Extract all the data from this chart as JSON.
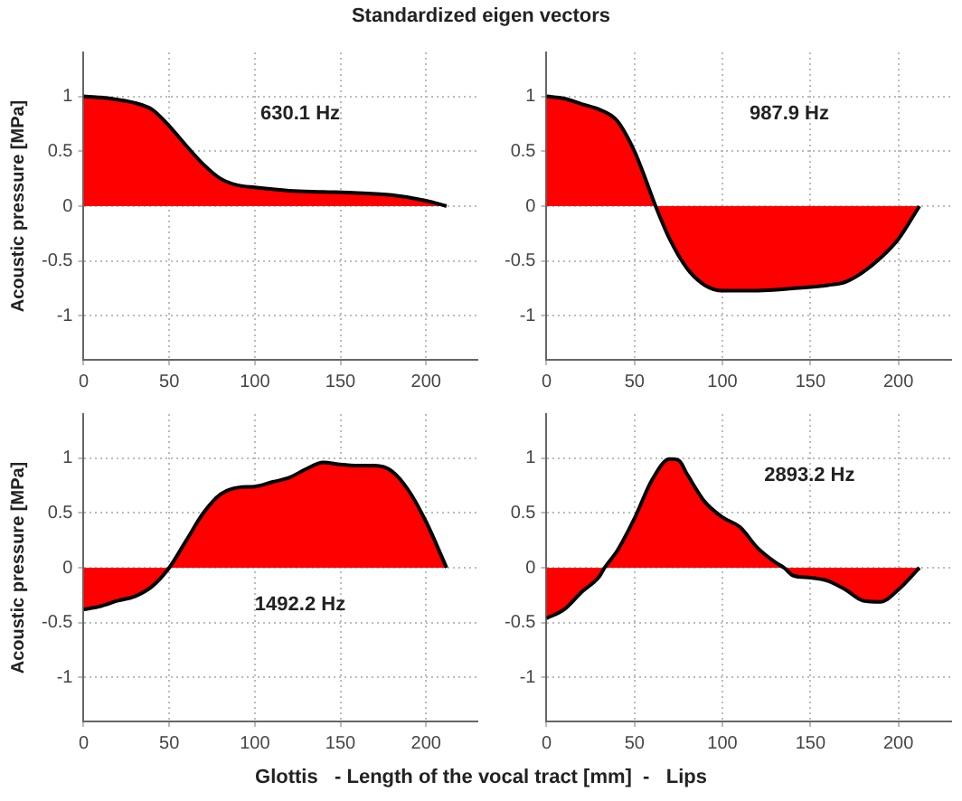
{
  "chart_data": [
    {
      "type": "area",
      "title": "Standardized eigen vectors",
      "ylabel": "Acoustic pressure [MPa]",
      "annotations": [
        "630.1 Hz"
      ],
      "xlim": [
        0,
        230
      ],
      "ylim": [
        -1.4,
        1.4
      ],
      "xticks": [
        0,
        50,
        100,
        150,
        200
      ],
      "yticks": [
        -1,
        -0.5,
        0,
        0.5,
        1
      ],
      "grid": true,
      "legend": false,
      "marker": "none",
      "series": [
        {
          "color": "#ff0000",
          "x": [
            0,
            10,
            20,
            30,
            40,
            50,
            60,
            70,
            80,
            90,
            100,
            120,
            140,
            160,
            180,
            200,
            212
          ],
          "values": [
            1.0,
            0.99,
            0.97,
            0.94,
            0.88,
            0.73,
            0.55,
            0.38,
            0.25,
            0.19,
            0.17,
            0.14,
            0.13,
            0.12,
            0.1,
            0.05,
            0.0
          ]
        }
      ]
    },
    {
      "type": "area",
      "annotations": [
        "987.9 Hz"
      ],
      "xlim": [
        0,
        230
      ],
      "ylim": [
        -1.4,
        1.4
      ],
      "xticks": [
        0,
        50,
        100,
        150,
        200
      ],
      "yticks": [
        -1,
        -0.5,
        0,
        0.5,
        1
      ],
      "grid": true,
      "legend": false,
      "marker": "none",
      "series": [
        {
          "color": "#ff0000",
          "x": [
            0,
            10,
            20,
            30,
            40,
            50,
            55,
            62,
            70,
            80,
            90,
            100,
            120,
            140,
            160,
            170,
            180,
            190,
            200,
            212
          ],
          "values": [
            1.0,
            0.98,
            0.93,
            0.88,
            0.78,
            0.5,
            0.3,
            0,
            -0.3,
            -0.57,
            -0.72,
            -0.77,
            -0.77,
            -0.75,
            -0.72,
            -0.69,
            -0.6,
            -0.47,
            -0.3,
            0
          ]
        }
      ]
    },
    {
      "type": "area",
      "ylabel": "Acoustic pressure [MPa]",
      "xlabel": "Glottis   - Length of the vocal tract [mm]  -   Lips",
      "annotations": [
        "1492.2 Hz"
      ],
      "xlim": [
        0,
        230
      ],
      "ylim": [
        -1.4,
        1.4
      ],
      "xticks": [
        0,
        50,
        100,
        150,
        200
      ],
      "yticks": [
        -1,
        -0.5,
        0,
        0.5,
        1
      ],
      "grid": true,
      "legend": false,
      "marker": "none",
      "series": [
        {
          "color": "#ff0000",
          "x": [
            0,
            10,
            20,
            30,
            40,
            50,
            60,
            70,
            80,
            90,
            100,
            110,
            120,
            130,
            140,
            150,
            160,
            170,
            180,
            190,
            200,
            212
          ],
          "values": [
            -0.38,
            -0.35,
            -0.3,
            -0.26,
            -0.17,
            0,
            0.25,
            0.5,
            0.67,
            0.73,
            0.74,
            0.78,
            0.82,
            0.9,
            0.96,
            0.94,
            0.93,
            0.93,
            0.88,
            0.7,
            0.42,
            0
          ]
        }
      ]
    },
    {
      "type": "area",
      "annotations": [
        "2893.2 Hz"
      ],
      "xlim": [
        0,
        230
      ],
      "ylim": [
        -1.4,
        1.4
      ],
      "xticks": [
        0,
        50,
        100,
        150,
        200
      ],
      "yticks": [
        -1,
        -0.5,
        0,
        0.5,
        1
      ],
      "grid": true,
      "legend": false,
      "marker": "none",
      "series": [
        {
          "color": "#ff0000",
          "x": [
            0,
            10,
            20,
            30,
            33,
            40,
            50,
            60,
            70,
            75,
            80,
            90,
            100,
            110,
            120,
            130,
            135,
            140,
            150,
            160,
            170,
            180,
            190,
            200,
            212
          ],
          "values": [
            -0.46,
            -0.38,
            -0.22,
            -0.08,
            0,
            0.15,
            0.45,
            0.8,
            0.99,
            0.98,
            0.85,
            0.6,
            0.46,
            0.37,
            0.18,
            0.05,
            0,
            -0.07,
            -0.09,
            -0.12,
            -0.2,
            -0.3,
            -0.31,
            -0.2,
            0
          ]
        }
      ]
    }
  ]
}
